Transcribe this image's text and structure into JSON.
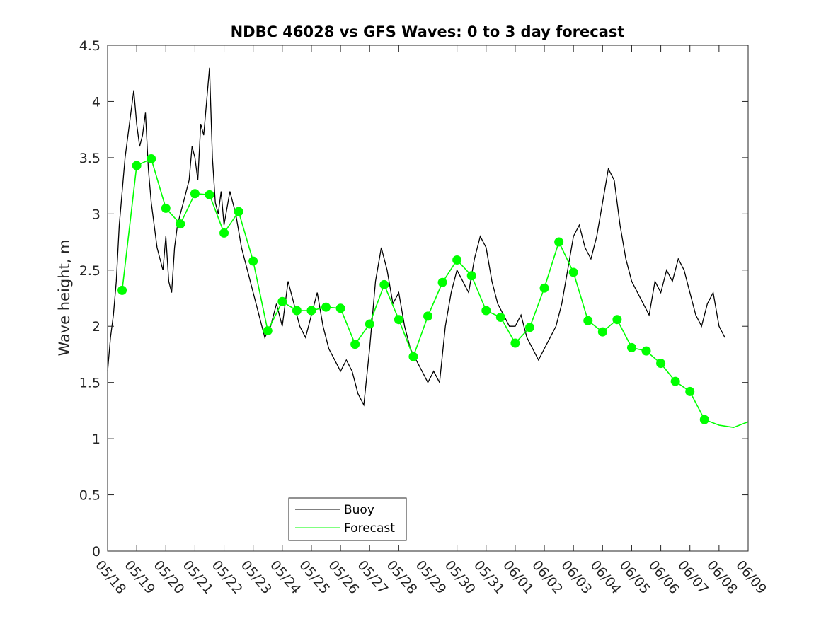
{
  "chart_data": {
    "type": "line",
    "title": "NDBC 46028 vs GFS Waves: 0 to 3 day forecast",
    "xlabel": "",
    "ylabel": "Wave height, m",
    "x_tick_labels": [
      "05/18",
      "05/19",
      "05/20",
      "05/21",
      "05/22",
      "05/23",
      "05/24",
      "05/25",
      "05/26",
      "05/27",
      "05/28",
      "05/29",
      "05/30",
      "05/31",
      "06/01",
      "06/02",
      "06/03",
      "06/04",
      "06/05",
      "06/06",
      "06/07",
      "06/08",
      "06/09"
    ],
    "y_ticks": [
      0,
      0.5,
      1,
      1.5,
      2,
      2.5,
      3,
      3.5,
      4,
      4.5
    ],
    "y_tick_labels": [
      "0",
      "0.5",
      "1",
      "1.5",
      "2",
      "2.5",
      "3",
      "3.5",
      "4",
      "4.5"
    ],
    "xlim_days": [
      0,
      22
    ],
    "ylim": [
      0,
      4.5
    ],
    "grid": false,
    "legend": {
      "position": "bottom-center",
      "entries": [
        "Buoy",
        "Forecast"
      ]
    },
    "colors": {
      "buoy": "#000000",
      "forecast": "#00ff00",
      "axes": "#262626"
    },
    "series": [
      {
        "name": "Buoy",
        "x": [
          0,
          0.1,
          0.2,
          0.3,
          0.4,
          0.5,
          0.6,
          0.7,
          0.8,
          0.9,
          1.0,
          1.1,
          1.2,
          1.3,
          1.4,
          1.5,
          1.6,
          1.7,
          1.8,
          1.9,
          2.0,
          2.1,
          2.2,
          2.3,
          2.4,
          2.5,
          2.6,
          2.7,
          2.8,
          2.9,
          3.0,
          3.1,
          3.2,
          3.3,
          3.4,
          3.5,
          3.6,
          3.7,
          3.8,
          3.9,
          4.0,
          4.2,
          4.4,
          4.6,
          4.8,
          5.0,
          5.2,
          5.4,
          5.6,
          5.8,
          6.0,
          6.2,
          6.4,
          6.6,
          6.8,
          7.0,
          7.2,
          7.4,
          7.6,
          7.8,
          8.0,
          8.2,
          8.4,
          8.6,
          8.8,
          9.0,
          9.2,
          9.4,
          9.6,
          9.8,
          10.0,
          10.2,
          10.4,
          10.6,
          10.8,
          11.0,
          11.2,
          11.4,
          11.6,
          11.8,
          12.0,
          12.2,
          12.4,
          12.6,
          12.8,
          13.0,
          13.2,
          13.4,
          13.6,
          13.8,
          14.0,
          14.2,
          14.4,
          14.6,
          14.8,
          15.0,
          15.2,
          15.4,
          15.6,
          15.8,
          16.0,
          16.2,
          16.4,
          16.6,
          16.8,
          17.0,
          17.2,
          17.4,
          17.6,
          17.8,
          18.0,
          18.2,
          18.4,
          18.6,
          18.8,
          19.0,
          19.2,
          19.4,
          19.6,
          19.8,
          20.0,
          20.2,
          20.4,
          20.6,
          20.8,
          21.0,
          21.2
        ],
        "y": [
          1.6,
          1.9,
          2.1,
          2.4,
          2.9,
          3.2,
          3.5,
          3.7,
          3.9,
          4.1,
          3.8,
          3.6,
          3.7,
          3.9,
          3.4,
          3.1,
          2.9,
          2.7,
          2.6,
          2.5,
          2.8,
          2.4,
          2.3,
          2.7,
          2.9,
          3.0,
          3.1,
          3.2,
          3.3,
          3.6,
          3.5,
          3.3,
          3.8,
          3.7,
          4.0,
          4.3,
          3.5,
          3.1,
          3.0,
          3.2,
          2.9,
          3.2,
          3.0,
          2.7,
          2.5,
          2.3,
          2.1,
          1.9,
          2.0,
          2.2,
          2.0,
          2.4,
          2.2,
          2.0,
          1.9,
          2.1,
          2.3,
          2.0,
          1.8,
          1.7,
          1.6,
          1.7,
          1.6,
          1.4,
          1.3,
          1.8,
          2.4,
          2.7,
          2.5,
          2.2,
          2.3,
          2.0,
          1.8,
          1.7,
          1.6,
          1.5,
          1.6,
          1.5,
          2.0,
          2.3,
          2.5,
          2.4,
          2.3,
          2.6,
          2.8,
          2.7,
          2.4,
          2.2,
          2.1,
          2.0,
          2.0,
          2.1,
          1.9,
          1.8,
          1.7,
          1.8,
          1.9,
          2.0,
          2.2,
          2.5,
          2.8,
          2.9,
          2.7,
          2.6,
          2.8,
          3.1,
          3.4,
          3.3,
          2.9,
          2.6,
          2.4,
          2.3,
          2.2,
          2.1,
          2.4,
          2.3,
          2.5,
          2.4,
          2.6,
          2.5,
          2.3,
          2.1,
          2.0,
          2.2,
          2.3,
          2.0,
          1.9
        ]
      },
      {
        "name": "Forecast",
        "x": [
          0.5,
          1.0,
          1.5,
          2.0,
          2.5,
          3.0,
          3.5,
          4.0,
          4.5,
          5.0,
          5.5,
          6.0,
          6.5,
          7.0,
          7.5,
          8.0,
          8.5,
          9.0,
          9.5,
          10.0,
          10.5,
          11.0,
          11.5,
          12.0,
          12.5,
          13.0,
          13.5,
          14.0,
          14.5,
          15.0,
          15.5,
          16.0,
          16.5,
          17.0,
          17.5,
          18.0,
          18.5,
          19.0,
          19.5,
          20.0,
          20.5,
          21.0,
          21.5,
          22.0
        ],
        "y": [
          2.32,
          3.43,
          3.49,
          3.05,
          2.91,
          3.18,
          3.17,
          2.83,
          3.02,
          2.58,
          1.96,
          2.22,
          2.14,
          2.14,
          2.17,
          2.16,
          1.84,
          2.02,
          2.37,
          2.06,
          1.73,
          2.09,
          2.39,
          2.59,
          2.45,
          2.14,
          2.08,
          1.85,
          1.99,
          2.34,
          2.75,
          2.48,
          2.05,
          1.95,
          2.06,
          1.81,
          1.78,
          1.67,
          1.51,
          1.42,
          1.17,
          1.12,
          1.1,
          1.15
        ]
      }
    ],
    "forecast_points": {
      "x": [
        0.5,
        1.0,
        1.5,
        2.0,
        2.5,
        3.0,
        3.5,
        4.0,
        4.5,
        5.0,
        5.5,
        6.0,
        6.5,
        7.0,
        7.5,
        8.0,
        8.5,
        9.0,
        9.5,
        10.0,
        10.5,
        11.0,
        11.5,
        12.0,
        12.5,
        13.0,
        13.5,
        14.0,
        14.5,
        15.0,
        15.5,
        16.0,
        16.5,
        17.0,
        17.5,
        18.0,
        18.5,
        19.0,
        19.5,
        20.0,
        20.5
      ],
      "y": [
        2.32,
        3.43,
        3.49,
        3.05,
        2.91,
        3.18,
        3.17,
        2.83,
        3.02,
        2.58,
        1.96,
        2.22,
        2.14,
        2.14,
        2.17,
        2.16,
        1.84,
        2.02,
        2.37,
        2.06,
        1.73,
        2.09,
        2.39,
        2.59,
        2.45,
        2.14,
        2.08,
        1.85,
        1.99,
        2.34,
        2.75,
        2.48,
        2.05,
        1.95,
        2.06,
        1.81,
        1.78,
        1.67,
        1.51,
        1.42,
        1.17
      ]
    }
  }
}
